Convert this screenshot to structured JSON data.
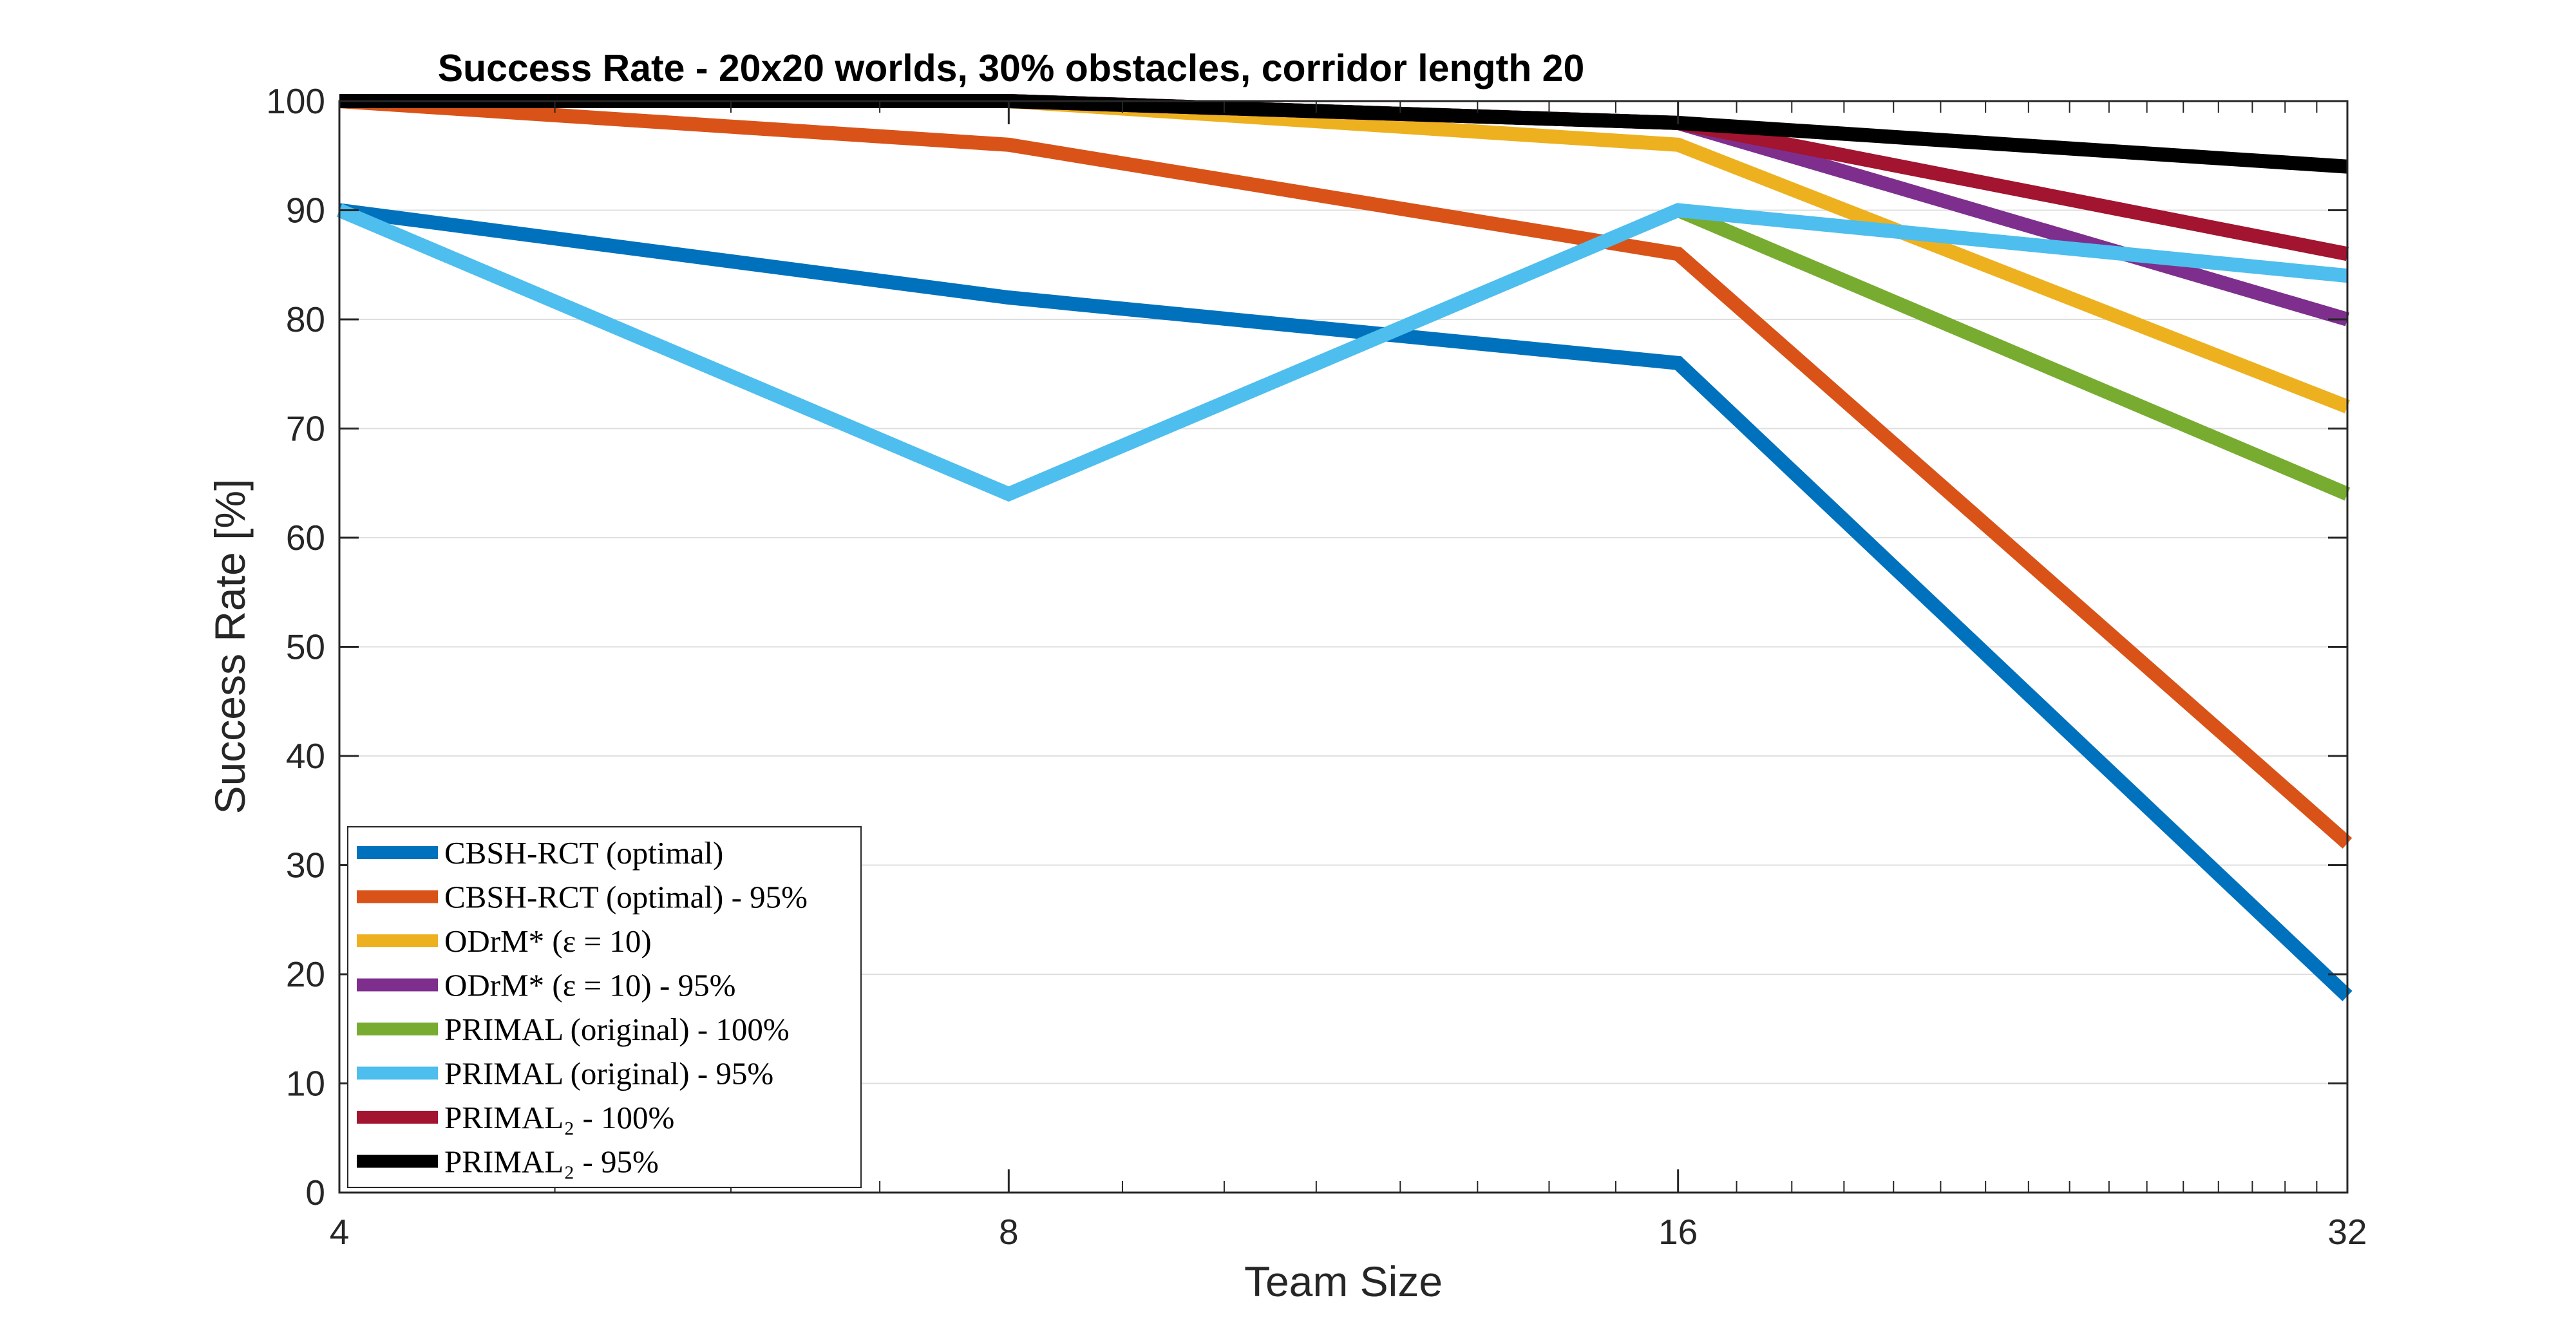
{
  "chart_data": {
    "type": "line",
    "title": "Success Rate - 20x20 worlds, 30% obstacles, corridor length 20",
    "xlabel": "Team Size",
    "ylabel": "Success Rate [%]",
    "x_scale": "log2",
    "x": [
      4,
      8,
      16,
      32
    ],
    "x_ticks": [
      "4",
      "8",
      "16",
      "32"
    ],
    "ylim": [
      0,
      100
    ],
    "y_ticks": [
      "0",
      "10",
      "20",
      "30",
      "40",
      "50",
      "60",
      "70",
      "80",
      "90",
      "100"
    ],
    "grid": "horizontal",
    "legend_position": "bottom-left",
    "series": [
      {
        "name": "CBSH-RCT (optimal)",
        "color": "#0072BD",
        "values": [
          90,
          82,
          76,
          18
        ]
      },
      {
        "name": "CBSH-RCT (optimal) - 95%",
        "color": "#D95319",
        "values": [
          100,
          96,
          86,
          32
        ]
      },
      {
        "name": "ODrM* (ε = 10)",
        "color": "#EDB120",
        "values": [
          100,
          100,
          96,
          72
        ]
      },
      {
        "name": "ODrM* (ε = 10) - 95%",
        "color": "#7E2F8E",
        "values": [
          100,
          100,
          98,
          80
        ]
      },
      {
        "name": "PRIMAL (original) - 100%",
        "color": "#77AC30",
        "values": [
          null,
          null,
          90,
          64
        ]
      },
      {
        "name": "PRIMAL (original) - 95%",
        "color": "#4DBEEE",
        "values": [
          90,
          64,
          90,
          84
        ]
      },
      {
        "name": "PRIMAL₂ - 100%",
        "color": "#A2142F",
        "values": [
          100,
          100,
          98,
          86
        ]
      },
      {
        "name": "PRIMAL₂ - 95%",
        "color": "#000000",
        "values": [
          100,
          100,
          98,
          94
        ]
      }
    ]
  }
}
